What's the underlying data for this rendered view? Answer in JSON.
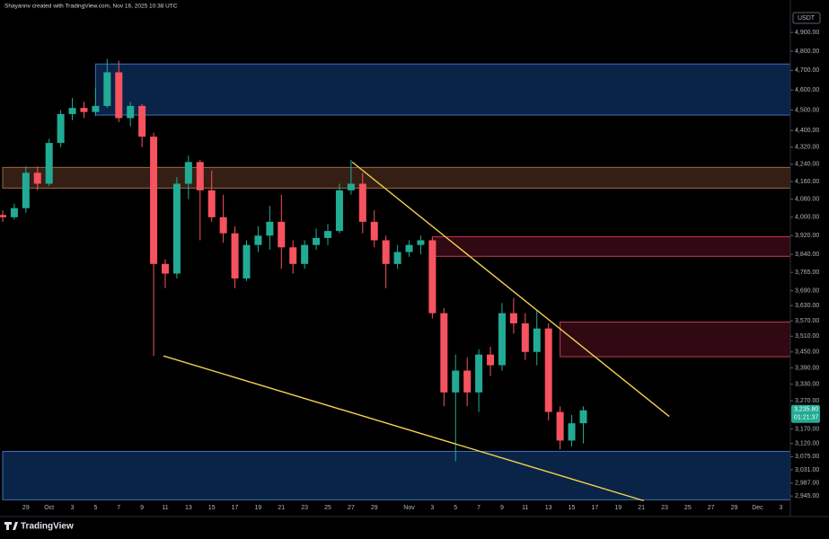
{
  "chart_data": {
    "type": "candlestick",
    "attribution": "Shayannv created with TradingView.com, Nov 16, 2025 10:38 UTC",
    "currency": "USDT",
    "brand": "TradingView",
    "log_scale": true,
    "ylim": [
      2888,
      5008
    ],
    "yticks": [
      {
        "value": 4900,
        "label": "4,900.00"
      },
      {
        "value": 4800,
        "label": "4,800.00"
      },
      {
        "value": 4700,
        "label": "4,700.00"
      },
      {
        "value": 4600,
        "label": "4,600.00"
      },
      {
        "value": 4500,
        "label": "4,500.00"
      },
      {
        "value": 4400,
        "label": "4,400.00"
      },
      {
        "value": 4320,
        "label": "4,320.00"
      },
      {
        "value": 4240,
        "label": "4,240.00"
      },
      {
        "value": 4160,
        "label": "4,160.00"
      },
      {
        "value": 4080,
        "label": "4,080.00"
      },
      {
        "value": 4000,
        "label": "4,000.00"
      },
      {
        "value": 3920,
        "label": "3,920.00"
      },
      {
        "value": 3840,
        "label": "3,840.00"
      },
      {
        "value": 3765,
        "label": "3,765.00"
      },
      {
        "value": 3690,
        "label": "3,690.00"
      },
      {
        "value": 3630,
        "label": "3,630.00"
      },
      {
        "value": 3570,
        "label": "3,570.00"
      },
      {
        "value": 3510,
        "label": "3,510.00"
      },
      {
        "value": 3450,
        "label": "3,450.00"
      },
      {
        "value": 3390,
        "label": "3,390.00"
      },
      {
        "value": 3330,
        "label": "3,330.00"
      },
      {
        "value": 3270,
        "label": "3,270.00"
      },
      {
        "value": 3170,
        "label": "3,170.00"
      },
      {
        "value": 3120,
        "label": "3,120.00"
      },
      {
        "value": 3075,
        "label": "3,075.00"
      },
      {
        "value": 3031,
        "label": "3,031.00"
      },
      {
        "value": 2987,
        "label": "2,987.00"
      },
      {
        "value": 2945,
        "label": "2,945.00"
      }
    ],
    "categories": [
      null,
      null,
      "29",
      null,
      "Oct",
      null,
      "3",
      null,
      "5",
      null,
      "7",
      null,
      "9",
      null,
      "11",
      null,
      "13",
      null,
      "15",
      null,
      "17",
      null,
      "19",
      null,
      "21",
      null,
      "23",
      null,
      "25",
      null,
      "27",
      null,
      "29",
      null,
      null,
      "Nov",
      null,
      "3",
      null,
      "5",
      null,
      "7",
      null,
      "9",
      null,
      "11",
      null,
      "13",
      null,
      "15",
      null,
      "17",
      null,
      "19",
      null,
      "21",
      null,
      "23",
      null,
      "25",
      null,
      "27",
      null,
      "29",
      null,
      "Dec",
      null,
      "3"
    ],
    "open": [
      4010,
      4000,
      4040,
      4200,
      4150,
      4340,
      4480,
      4510,
      4490,
      4520,
      4690,
      4460,
      4520,
      4370,
      3800,
      3760,
      4150,
      4250,
      4120,
      4000,
      3930,
      3740,
      3880,
      3920,
      3980,
      3870,
      3800,
      3880,
      3910,
      3940,
      4120,
      4150,
      3980,
      3900,
      3800,
      3850,
      3880,
      3900,
      3600,
      3300,
      3380,
      3300,
      3440,
      3400,
      3600,
      3560,
      3450,
      3540,
      3230,
      3130,
      3190,
      null,
      null,
      null,
      null,
      null,
      null,
      null,
      null,
      null,
      null,
      null,
      null,
      null,
      null,
      null,
      null,
      null
    ],
    "high": [
      4030,
      4060,
      4230,
      4230,
      4360,
      4500,
      4560,
      4540,
      4610,
      4760,
      4750,
      4540,
      4530,
      4390,
      3820,
      4180,
      4280,
      4260,
      4210,
      4100,
      3960,
      3900,
      3960,
      4050,
      4100,
      3900,
      3900,
      3950,
      3970,
      4150,
      4260,
      4200,
      4030,
      3920,
      3880,
      3900,
      3920,
      3910,
      3620,
      3440,
      3430,
      3460,
      3470,
      3640,
      3660,
      3600,
      3610,
      3560,
      3250,
      3220,
      3250,
      null,
      null,
      null,
      null,
      null,
      null,
      null,
      null,
      null,
      null,
      null,
      null,
      null,
      null,
      null,
      null,
      null
    ],
    "low": [
      3980,
      3990,
      4020,
      4120,
      4140,
      4320,
      4450,
      4460,
      4470,
      4510,
      4440,
      4420,
      4320,
      3435,
      3700,
      3740,
      4080,
      3900,
      3980,
      3890,
      3700,
      3730,
      3850,
      3860,
      3780,
      3760,
      3780,
      3860,
      3880,
      3930,
      4100,
      3930,
      3870,
      3700,
      3780,
      3830,
      3840,
      3580,
      3250,
      3060,
      3250,
      3230,
      3360,
      3380,
      3520,
      3420,
      3400,
      3200,
      3100,
      3110,
      3120,
      null,
      null,
      null,
      null,
      null,
      null,
      null,
      null,
      null,
      null,
      null,
      null,
      null,
      null,
      null,
      null,
      null
    ],
    "close": [
      4000,
      4040,
      4200,
      4150,
      4340,
      4480,
      4510,
      4490,
      4520,
      4690,
      4460,
      4520,
      4370,
      3800,
      3760,
      4150,
      4250,
      4120,
      4000,
      3930,
      3740,
      3880,
      3920,
      3980,
      3870,
      3800,
      3880,
      3910,
      3940,
      4120,
      4150,
      3980,
      3900,
      3800,
      3850,
      3880,
      3900,
      3600,
      3300,
      3380,
      3300,
      3440,
      3400,
      3600,
      3560,
      3450,
      3540,
      3230,
      3130,
      3190,
      3235.8,
      null,
      null,
      null,
      null,
      null,
      null,
      null,
      null,
      null,
      null,
      null,
      null,
      null,
      null,
      null,
      null,
      null
    ],
    "up_color": "#22ab94",
    "down_color": "#f7525f",
    "last_price": {
      "value": 3235.8,
      "label": "3,235.80"
    },
    "countdown": "01:21:37",
    "zones": [
      {
        "x0": 8,
        "range": [
          4475,
          4733
        ],
        "color": "#0c2a55",
        "border": "#3d6fb8"
      },
      {
        "x0": 0,
        "range": [
          4130,
          4225
        ],
        "color": "#3e2418",
        "border": "#9a6a45"
      },
      {
        "x0": 37,
        "range": [
          3832,
          3915
        ],
        "color": "#3a0a16",
        "border": "#c43a55"
      },
      {
        "x0": 48,
        "range": [
          3432,
          3565
        ],
        "color": "#3a0a16",
        "border": "#c43a55"
      },
      {
        "x0": 0,
        "range": [
          2933,
          3093
        ],
        "color": "#0c2a55",
        "border": "#3d6fb8"
      }
    ],
    "trendlines": [
      {
        "x": [
          30.1,
          57.4
        ],
        "y": [
          4250,
          3214
        ],
        "color": "#f2d24a"
      },
      {
        "x": [
          13.85,
          55.2
        ],
        "y": [
          3435,
          2930
        ],
        "color": "#f2d24a"
      }
    ]
  }
}
